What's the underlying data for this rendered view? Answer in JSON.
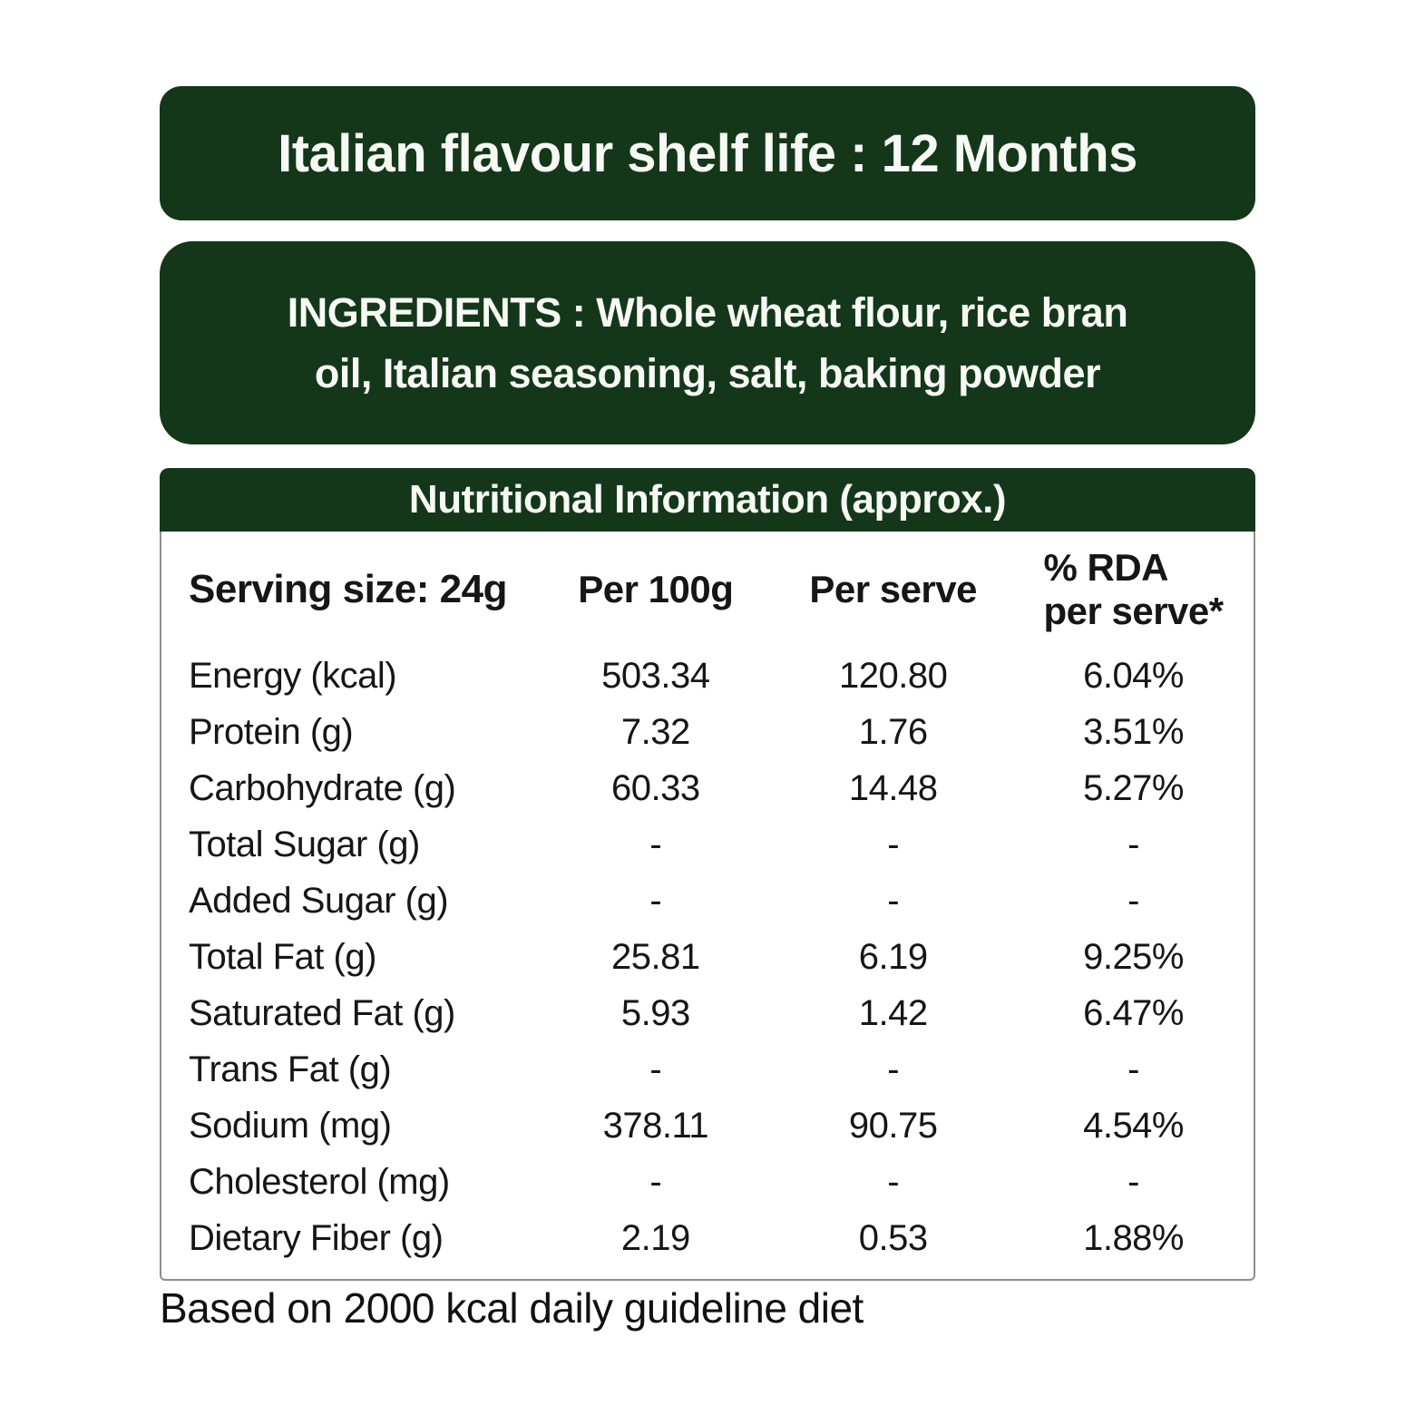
{
  "page": {
    "background_color": "#ffffff",
    "accent_green": "#14371a",
    "text_color": "#161616"
  },
  "banner": {
    "text": "Italian flavour shelf life : 12 Months"
  },
  "ingredients": {
    "lines": [
      "INGREDIENTS : Whole wheat flour, rice bran",
      "oil, Italian seasoning, salt, baking powder"
    ]
  },
  "nutrition_table": {
    "title": "Nutritional Information (approx.)",
    "header": {
      "serving_size": "Serving size: 24g",
      "per_100g": "Per 100g",
      "per_serve": "Per serve",
      "rda_line1": "% RDA",
      "rda_line2": "per serve*"
    },
    "rows": [
      {
        "label": "Energy (kcal)",
        "per_100g": "503.34",
        "per_serve": "120.80",
        "rda": "6.04%"
      },
      {
        "label": "Protein (g)",
        "per_100g": "7.32",
        "per_serve": "1.76",
        "rda": "3.51%"
      },
      {
        "label": "Carbohydrate (g)",
        "per_100g": "60.33",
        "per_serve": "14.48",
        "rda": "5.27%"
      },
      {
        "label": "Total Sugar (g)",
        "per_100g": "-",
        "per_serve": "-",
        "rda": "-"
      },
      {
        "label": "Added Sugar (g)",
        "per_100g": "-",
        "per_serve": "-",
        "rda": "-"
      },
      {
        "label": "Total Fat (g)",
        "per_100g": "25.81",
        "per_serve": "6.19",
        "rda": "9.25%"
      },
      {
        "label": "Saturated Fat (g)",
        "per_100g": "5.93",
        "per_serve": "1.42",
        "rda": "6.47%"
      },
      {
        "label": "Trans Fat (g)",
        "per_100g": "-",
        "per_serve": "-",
        "rda": "-"
      },
      {
        "label": "Sodium (mg)",
        "per_100g": "378.11",
        "per_serve": "90.75",
        "rda": "4.54%"
      },
      {
        "label": "Cholesterol (mg)",
        "per_100g": "-",
        "per_serve": "-",
        "rda": "-"
      },
      {
        "label": "Dietary Fiber (g)",
        "per_100g": "2.19",
        "per_serve": "0.53",
        "rda": "1.88%"
      }
    ]
  },
  "footer": {
    "text": "Based on 2000 kcal daily guideline diet"
  }
}
